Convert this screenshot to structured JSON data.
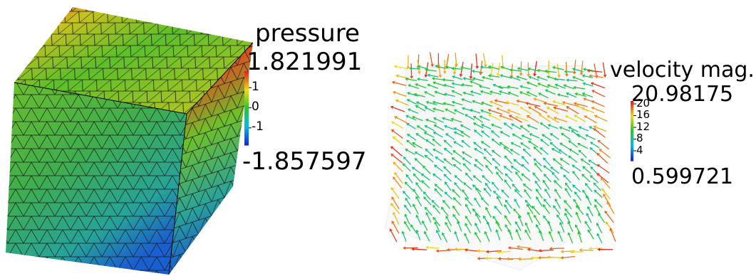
{
  "pressure_legend": {
    "title": "pressure",
    "max_label": "1.821991",
    "min_label": "-1.857597",
    "max": 1.821991,
    "min": -1.857597,
    "ticks": [
      {
        "value": 1,
        "label": "1"
      },
      {
        "value": 0,
        "label": "0"
      },
      {
        "value": -1,
        "label": "-1"
      }
    ]
  },
  "velocity_legend": {
    "title": "velocity mag.",
    "max_label": "20.98175",
    "min_label": "0.599721",
    "max": 20.98175,
    "min": 0.599721,
    "ticks": [
      {
        "value": 20,
        "label": "20"
      },
      {
        "value": 16,
        "label": "16"
      },
      {
        "value": 12,
        "label": "12"
      },
      {
        "value": 8,
        "label": "8"
      },
      {
        "value": 4,
        "label": "4"
      }
    ]
  },
  "colormap": "rainbow (blue-cyan-green-yellow-red)"
}
